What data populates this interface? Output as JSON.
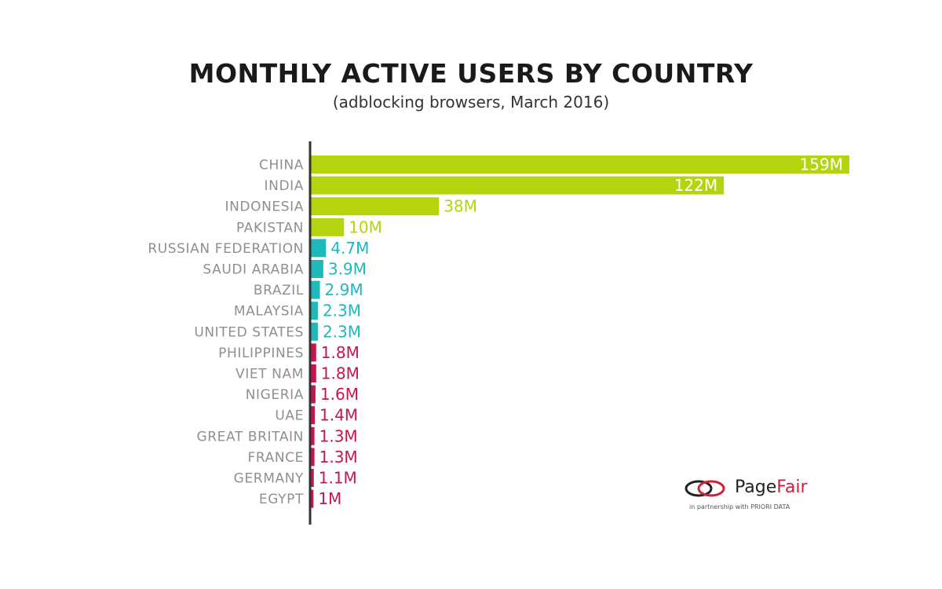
{
  "chart_data": {
    "type": "bar",
    "orientation": "horizontal",
    "title": "MONTHLY ACTIVE USERS BY COUNTRY",
    "subtitle": "(adblocking browsers, March 2016)",
    "categories": [
      "CHINA",
      "INDIA",
      "INDONESIA",
      "PAKISTAN",
      "RUSSIAN FEDERATION",
      "SAUDI ARABIA",
      "BRAZIL",
      "MALAYSIA",
      "UNITED STATES",
      "PHILIPPINES",
      "VIET NAM",
      "NIGERIA",
      "UAE",
      "GREAT BRITAIN",
      "FRANCE",
      "GERMANY",
      "EGYPT"
    ],
    "values": [
      159,
      122,
      38,
      10,
      4.7,
      3.9,
      2.9,
      2.3,
      2.3,
      1.8,
      1.8,
      1.6,
      1.4,
      1.3,
      1.3,
      1.1,
      1
    ],
    "value_labels": [
      "159M",
      "122M",
      "38M",
      "10M",
      "4.7M",
      "3.9M",
      "2.9M",
      "2.3M",
      "2.3M",
      "1.8M",
      "1.8M",
      "1.6M",
      "1.4M",
      "1.3M",
      "1.3M",
      "1.1M",
      "1M"
    ],
    "unit": "M",
    "xlim": [
      0,
      159
    ],
    "grid": false,
    "legend": "none",
    "color_groups": [
      {
        "color": "#b5d30e",
        "count": 4
      },
      {
        "color": "#1fb8bb",
        "count": 5
      },
      {
        "color": "#c8154a",
        "count": 8
      }
    ]
  },
  "logo": {
    "brand_main": "Page",
    "brand_accent": "Fair",
    "tagline": "in partnership with PRIORI DATA",
    "icon": "pagefair-swirl-icon"
  }
}
